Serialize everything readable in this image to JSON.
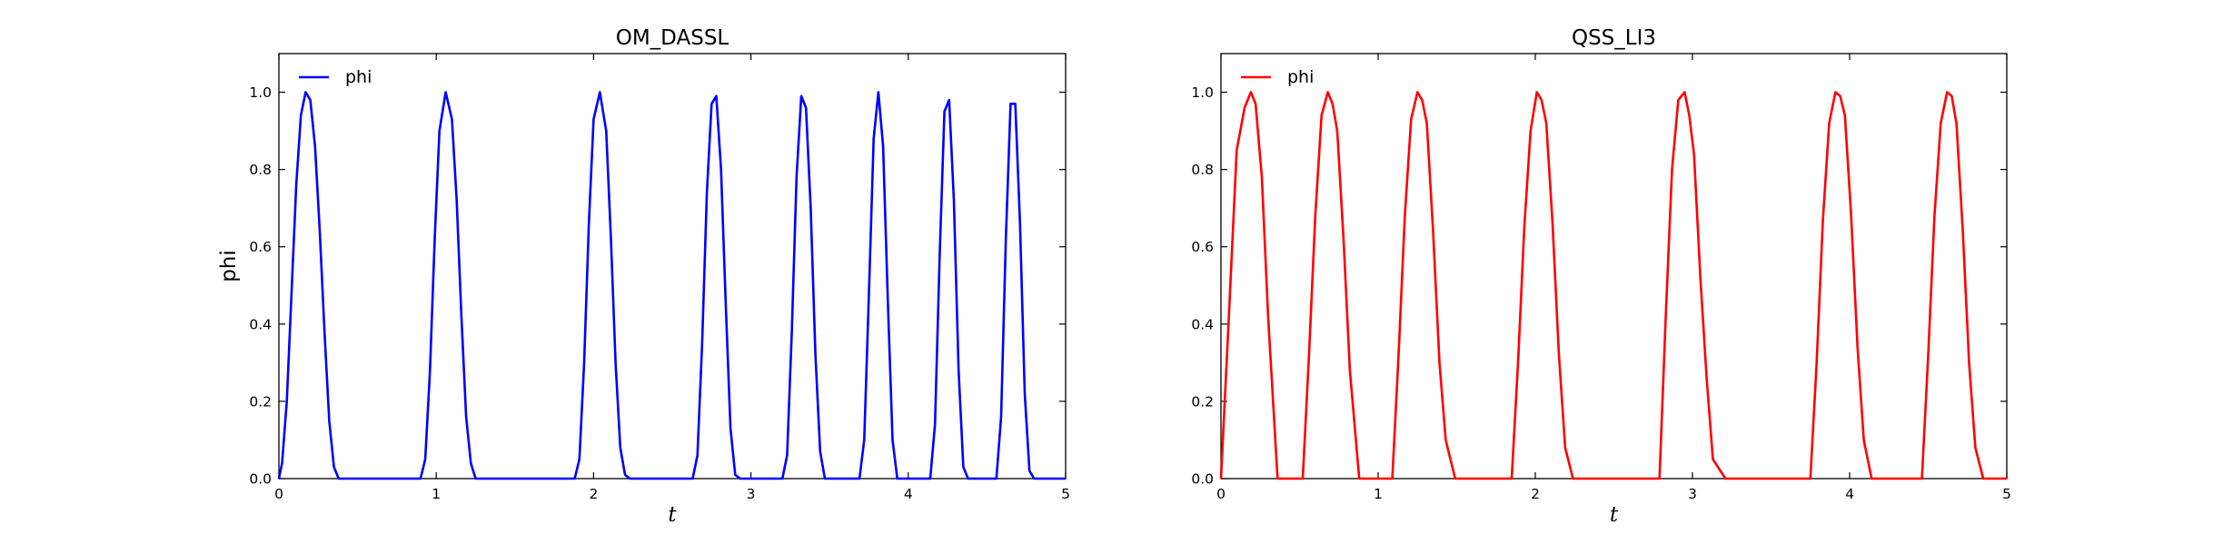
{
  "chart_data": [
    {
      "type": "line",
      "title": "OM_DASSL",
      "xlabel": "t",
      "ylabel": "phi",
      "xlim": [
        0,
        5
      ],
      "ylim": [
        0,
        1.1
      ],
      "xticks": [
        "0",
        "1",
        "2",
        "3",
        "4",
        "5"
      ],
      "yticks": [
        "0.0",
        "0.2",
        "0.4",
        "0.6",
        "0.8",
        "1.0"
      ],
      "legend": {
        "placement": "top-left",
        "entries": [
          "phi"
        ]
      },
      "grid": false,
      "series": [
        {
          "name": "phi",
          "color": "#0000ff",
          "x": [
            0.0,
            0.02,
            0.05,
            0.08,
            0.11,
            0.14,
            0.17,
            0.2,
            0.23,
            0.26,
            0.29,
            0.32,
            0.35,
            0.38,
            0.41,
            0.44,
            0.47,
            0.5,
            0.9,
            0.93,
            0.96,
            0.99,
            1.02,
            1.06,
            1.1,
            1.13,
            1.16,
            1.19,
            1.22,
            1.25,
            1.28,
            1.31,
            1.34,
            1.88,
            1.91,
            1.94,
            1.97,
            2.0,
            2.04,
            2.08,
            2.11,
            2.14,
            2.17,
            2.2,
            2.23,
            2.26,
            2.29,
            2.63,
            2.66,
            2.69,
            2.72,
            2.75,
            2.78,
            2.81,
            2.84,
            2.87,
            2.9,
            2.93,
            2.96,
            2.99,
            3.2,
            3.23,
            3.26,
            3.29,
            3.32,
            3.35,
            3.38,
            3.41,
            3.44,
            3.47,
            3.5,
            3.53,
            3.56,
            3.69,
            3.72,
            3.75,
            3.78,
            3.81,
            3.84,
            3.87,
            3.9,
            3.93,
            3.96,
            3.99,
            4.02,
            4.05,
            4.14,
            4.17,
            4.2,
            4.23,
            4.26,
            4.29,
            4.32,
            4.35,
            4.38,
            4.41,
            4.44,
            4.47,
            4.5,
            4.56,
            4.59,
            4.62,
            4.65,
            4.68,
            4.71,
            4.74,
            4.77,
            4.8,
            4.83,
            4.86,
            4.89,
            4.92,
            4.95,
            5.0
          ],
          "y": [
            0.0,
            0.04,
            0.2,
            0.48,
            0.76,
            0.94,
            1.0,
            0.98,
            0.86,
            0.64,
            0.38,
            0.15,
            0.03,
            0.0,
            0.0,
            0.0,
            0.0,
            0.0,
            0.0,
            0.05,
            0.28,
            0.62,
            0.9,
            1.0,
            0.93,
            0.72,
            0.42,
            0.16,
            0.04,
            0.0,
            0.0,
            0.0,
            0.0,
            0.0,
            0.05,
            0.3,
            0.66,
            0.93,
            1.0,
            0.9,
            0.62,
            0.3,
            0.08,
            0.01,
            0.0,
            0.0,
            0.0,
            0.0,
            0.06,
            0.35,
            0.74,
            0.97,
            0.99,
            0.8,
            0.45,
            0.13,
            0.01,
            0.0,
            0.0,
            0.0,
            0.0,
            0.06,
            0.38,
            0.78,
            0.99,
            0.96,
            0.7,
            0.32,
            0.07,
            0.0,
            0.0,
            0.0,
            0.0,
            0.0,
            0.1,
            0.48,
            0.88,
            1.0,
            0.86,
            0.46,
            0.1,
            0.0,
            0.0,
            0.0,
            0.0,
            0.0,
            0.0,
            0.14,
            0.58,
            0.95,
            0.98,
            0.72,
            0.28,
            0.03,
            0.0,
            0.0,
            0.0,
            0.0,
            0.0,
            0.0,
            0.16,
            0.62,
            0.97,
            0.97,
            0.66,
            0.22,
            0.02,
            0.0,
            0.0,
            0.0,
            0.0,
            0.0,
            0.0,
            0.0
          ]
        }
      ]
    },
    {
      "type": "line",
      "title": "QSS_LI3",
      "xlabel": "t",
      "ylabel": "",
      "xlim": [
        0,
        5
      ],
      "ylim": [
        0,
        1.1
      ],
      "xticks": [
        "0",
        "1",
        "2",
        "3",
        "4",
        "5"
      ],
      "yticks": [
        "0.0",
        "0.2",
        "0.4",
        "0.6",
        "0.8",
        "1.0"
      ],
      "legend": {
        "placement": "top-left",
        "entries": [
          "phi"
        ]
      },
      "grid": false,
      "series": [
        {
          "name": "phi",
          "color": "#ff0000",
          "x": [
            0.0,
            0.05,
            0.1,
            0.15,
            0.19,
            0.22,
            0.26,
            0.3,
            0.36,
            0.52,
            0.56,
            0.6,
            0.64,
            0.68,
            0.71,
            0.74,
            0.78,
            0.82,
            0.88,
            1.09,
            1.13,
            1.17,
            1.21,
            1.25,
            1.28,
            1.31,
            1.35,
            1.39,
            1.43,
            1.49,
            1.85,
            1.89,
            1.93,
            1.97,
            2.01,
            2.04,
            2.07,
            2.11,
            2.15,
            2.19,
            2.24,
            2.79,
            2.83,
            2.87,
            2.91,
            2.95,
            2.98,
            3.01,
            3.05,
            3.09,
            3.13,
            3.21,
            3.75,
            3.79,
            3.83,
            3.87,
            3.91,
            3.94,
            3.97,
            4.01,
            4.05,
            4.09,
            4.14,
            4.46,
            4.5,
            4.54,
            4.58,
            4.62,
            4.65,
            4.68,
            4.72,
            4.76,
            4.8,
            4.85,
            5.0
          ],
          "y": [
            0.0,
            0.42,
            0.85,
            0.96,
            1.0,
            0.97,
            0.78,
            0.42,
            0.0,
            0.0,
            0.32,
            0.68,
            0.94,
            1.0,
            0.97,
            0.9,
            0.62,
            0.28,
            0.0,
            0.0,
            0.32,
            0.68,
            0.93,
            1.0,
            0.98,
            0.92,
            0.64,
            0.3,
            0.1,
            0.0,
            0.0,
            0.3,
            0.65,
            0.9,
            1.0,
            0.98,
            0.92,
            0.66,
            0.32,
            0.08,
            0.0,
            0.0,
            0.42,
            0.8,
            0.98,
            1.0,
            0.94,
            0.84,
            0.52,
            0.26,
            0.05,
            0.0,
            0.0,
            0.3,
            0.67,
            0.92,
            1.0,
            0.99,
            0.94,
            0.68,
            0.34,
            0.1,
            0.0,
            0.0,
            0.32,
            0.68,
            0.92,
            1.0,
            0.99,
            0.92,
            0.64,
            0.3,
            0.08,
            0.0,
            0.0
          ]
        }
      ]
    }
  ]
}
